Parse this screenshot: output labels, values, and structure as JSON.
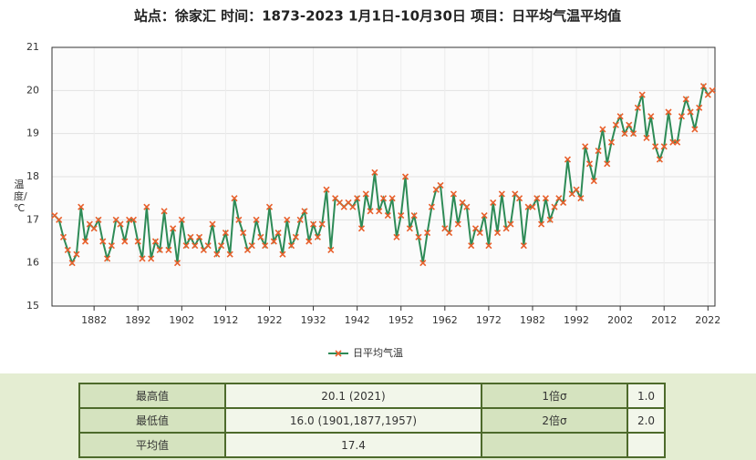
{
  "chart_data": {
    "type": "line",
    "title": "站点：徐家汇 时间：1873-2023  1月1日-10月30日 项目：日平均气温平均值",
    "y_label": "温度/℃",
    "x": [
      1873,
      1874,
      1875,
      1876,
      1877,
      1878,
      1879,
      1880,
      1881,
      1882,
      1883,
      1884,
      1885,
      1886,
      1887,
      1888,
      1889,
      1890,
      1891,
      1892,
      1893,
      1894,
      1895,
      1896,
      1897,
      1898,
      1899,
      1900,
      1901,
      1902,
      1903,
      1904,
      1905,
      1906,
      1907,
      1908,
      1909,
      1910,
      1911,
      1912,
      1913,
      1914,
      1915,
      1916,
      1917,
      1918,
      1919,
      1920,
      1921,
      1922,
      1923,
      1924,
      1925,
      1926,
      1927,
      1928,
      1929,
      1930,
      1931,
      1932,
      1933,
      1934,
      1935,
      1936,
      1937,
      1938,
      1939,
      1940,
      1941,
      1942,
      1943,
      1944,
      1945,
      1946,
      1947,
      1948,
      1949,
      1950,
      1951,
      1952,
      1953,
      1954,
      1955,
      1956,
      1957,
      1958,
      1959,
      1960,
      1961,
      1962,
      1963,
      1964,
      1965,
      1966,
      1967,
      1968,
      1969,
      1970,
      1971,
      1972,
      1973,
      1974,
      1975,
      1976,
      1977,
      1978,
      1979,
      1980,
      1981,
      1982,
      1983,
      1984,
      1985,
      1986,
      1987,
      1988,
      1989,
      1990,
      1991,
      1992,
      1993,
      1994,
      1995,
      1996,
      1997,
      1998,
      1999,
      2000,
      2001,
      2002,
      2003,
      2004,
      2005,
      2006,
      2007,
      2008,
      2009,
      2010,
      2011,
      2012,
      2013,
      2014,
      2015,
      2016,
      2017,
      2018,
      2019,
      2020,
      2021,
      2022,
      2023
    ],
    "series": [
      {
        "name": "日平均气温",
        "color": "#2e8b57",
        "marker_color": "#e8602c",
        "values": [
          17.1,
          17.0,
          16.6,
          16.3,
          16.0,
          16.2,
          17.3,
          16.5,
          16.9,
          16.8,
          17.0,
          16.5,
          16.1,
          16.4,
          17.0,
          16.9,
          16.5,
          17.0,
          17.0,
          16.5,
          16.1,
          17.3,
          16.1,
          16.5,
          16.3,
          17.2,
          16.3,
          16.8,
          16.0,
          17.0,
          16.4,
          16.6,
          16.4,
          16.6,
          16.3,
          16.4,
          16.9,
          16.2,
          16.4,
          16.7,
          16.2,
          17.5,
          17.0,
          16.7,
          16.3,
          16.4,
          17.0,
          16.6,
          16.4,
          17.3,
          16.5,
          16.7,
          16.2,
          17.0,
          16.4,
          16.6,
          17.0,
          17.2,
          16.5,
          16.9,
          16.6,
          16.9,
          17.7,
          16.3,
          17.5,
          17.4,
          17.3,
          17.4,
          17.3,
          17.5,
          16.8,
          17.6,
          17.2,
          18.1,
          17.2,
          17.5,
          17.1,
          17.5,
          16.6,
          17.1,
          18.0,
          16.8,
          17.1,
          16.6,
          16.0,
          16.7,
          17.3,
          17.7,
          17.8,
          16.8,
          16.7,
          17.6,
          16.9,
          17.4,
          17.3,
          16.4,
          16.8,
          16.7,
          17.1,
          16.4,
          17.4,
          16.7,
          17.6,
          16.8,
          16.9,
          17.6,
          17.5,
          16.4,
          17.3,
          17.3,
          17.5,
          16.9,
          17.5,
          17.0,
          17.3,
          17.5,
          17.4,
          18.4,
          17.6,
          17.7,
          17.5,
          18.7,
          18.3,
          17.9,
          18.6,
          19.1,
          18.3,
          18.8,
          19.2,
          19.4,
          19.0,
          19.2,
          19.0,
          19.6,
          19.9,
          18.9,
          19.4,
          18.7,
          18.4,
          18.7,
          19.5,
          18.8,
          18.8,
          19.4,
          19.8,
          19.5,
          19.1,
          19.6,
          20.1,
          19.9,
          20.0
        ]
      }
    ],
    "xlim": [
      1872.4,
      2023.6
    ],
    "xticks": [
      1882,
      1892,
      1902,
      1912,
      1922,
      1932,
      1942,
      1952,
      1962,
      1972,
      1982,
      1992,
      2002,
      2012,
      2022
    ],
    "ylim": [
      15,
      21
    ],
    "yticks": [
      15,
      16,
      17,
      18,
      19,
      20,
      21
    ],
    "grid": true
  },
  "table": {
    "rows": [
      [
        "最高值",
        "20.1 (2021)",
        "1倍σ",
        "1.0"
      ],
      [
        "最低值",
        "16.0 (1901,1877,1957)",
        "2倍σ",
        "2.0"
      ],
      [
        "平均值",
        "17.4"
      ]
    ]
  }
}
